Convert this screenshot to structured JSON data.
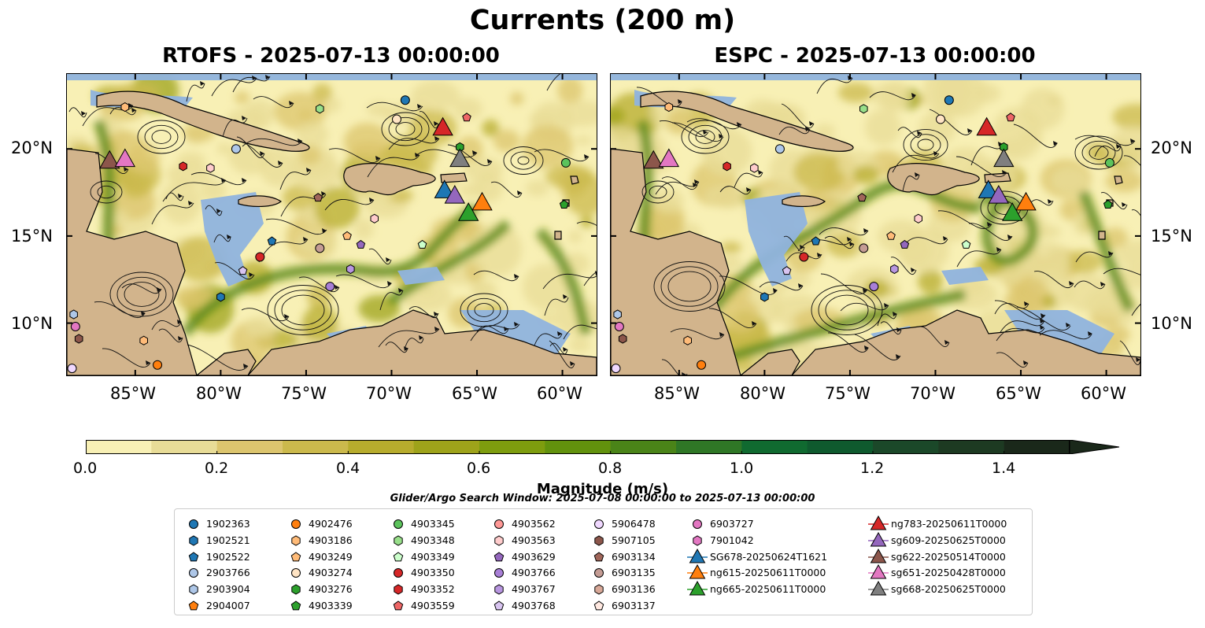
{
  "figure": {
    "title": "Currents (200 m)",
    "panels": [
      {
        "title": "RTOFS - 2025-07-13 00:00:00",
        "model": "RTOFS"
      },
      {
        "title": "ESPC - 2025-07-13 00:00:00",
        "model": "ESPC"
      }
    ],
    "lon_ticks": [
      "85°W",
      "80°W",
      "75°W",
      "70°W",
      "65°W",
      "60°W"
    ],
    "lat_ticks": [
      "20°N",
      "15°N",
      "10°N"
    ],
    "extent": {
      "lon": [
        -89,
        -58
      ],
      "lat": [
        7,
        24.3
      ]
    },
    "colors": {
      "land": "#d2b48c",
      "shallow_water": "#8fb3de",
      "coastline": "#000000"
    }
  },
  "colorbar": {
    "label": "Magnitude (m/s)",
    "min": 0.0,
    "max": 1.5,
    "extend": "max",
    "ticks": [
      "0.0",
      "0.2",
      "0.4",
      "0.6",
      "0.8",
      "1.0",
      "1.2",
      "1.4"
    ],
    "colors": [
      "#f8f0b5",
      "#e8dc97",
      "#dcc56e",
      "#cbb94c",
      "#b7ac2d",
      "#9ea31a",
      "#7e9d0e",
      "#62920d",
      "#4a8418",
      "#2f7726",
      "#106a30",
      "#0f5a2e",
      "#1b4829",
      "#1d3a22",
      "#1a281a"
    ]
  },
  "search_window": "Glider/Argo Search Window: 2025-07-08 00:00:00 to 2025-07-13 00:00:00",
  "legend": {
    "columns": [
      [
        {
          "label": "1902363",
          "marker": "circle",
          "color": "#1f77b4"
        },
        {
          "label": "1902521",
          "marker": "hexagon",
          "color": "#1f77b4"
        },
        {
          "label": "1902522",
          "marker": "pentagon",
          "color": "#1f77b4"
        },
        {
          "label": "2903766",
          "marker": "circle",
          "color": "#aec7e8"
        },
        {
          "label": "2903904",
          "marker": "hexagon",
          "color": "#aec7e8"
        },
        {
          "label": "2904007",
          "marker": "pentagon",
          "color": "#ff7f0e"
        }
      ],
      [
        {
          "label": "4902476",
          "marker": "circle",
          "color": "#ff7f0e"
        },
        {
          "label": "4903186",
          "marker": "hexagon",
          "color": "#ffbb78"
        },
        {
          "label": "4903249",
          "marker": "pentagon",
          "color": "#ffbb78"
        },
        {
          "label": "4903274",
          "marker": "circle",
          "color": "#ffe4c4"
        },
        {
          "label": "4903276",
          "marker": "hexagon",
          "color": "#2ca02c"
        },
        {
          "label": "4903339",
          "marker": "pentagon",
          "color": "#2ca02c"
        }
      ],
      [
        {
          "label": "4903345",
          "marker": "circle",
          "color": "#5cc35c"
        },
        {
          "label": "4903348",
          "marker": "hexagon",
          "color": "#98df8a"
        },
        {
          "label": "4903349",
          "marker": "pentagon",
          "color": "#ccffcc"
        },
        {
          "label": "4903350",
          "marker": "circle",
          "color": "#d62728"
        },
        {
          "label": "4903352",
          "marker": "hexagon",
          "color": "#d62728"
        },
        {
          "label": "4903559",
          "marker": "pentagon",
          "color": "#ee6666"
        }
      ],
      [
        {
          "label": "4903562",
          "marker": "circle",
          "color": "#ff9896"
        },
        {
          "label": "4903563",
          "marker": "hexagon",
          "color": "#ffcccc"
        },
        {
          "label": "4903629",
          "marker": "pentagon",
          "color": "#9467bd"
        },
        {
          "label": "4903766",
          "marker": "circle",
          "color": "#a87fd6"
        },
        {
          "label": "4903767",
          "marker": "hexagon",
          "color": "#b896e0"
        },
        {
          "label": "4903768",
          "marker": "pentagon",
          "color": "#d8c4f0"
        }
      ],
      [
        {
          "label": "5906478",
          "marker": "circle",
          "color": "#f0d8ff"
        },
        {
          "label": "5907105",
          "marker": "hexagon",
          "color": "#8c564b"
        },
        {
          "label": "6903134",
          "marker": "pentagon",
          "color": "#a0665a"
        },
        {
          "label": "6903135",
          "marker": "circle",
          "color": "#c49c94"
        },
        {
          "label": "6903136",
          "marker": "hexagon",
          "color": "#d8a898"
        },
        {
          "label": "6903137",
          "marker": "pentagon",
          "color": "#ffe8e0"
        }
      ],
      [
        {
          "label": "6903727",
          "marker": "circle",
          "color": "#e377c2"
        },
        {
          "label": "7901042",
          "marker": "hexagon",
          "color": "#e377c2"
        },
        {
          "label": "SG678-20250624T1621",
          "marker": "triangle",
          "color": "#1f77b4"
        },
        {
          "label": "ng615-20250611T0000",
          "marker": "triangle",
          "color": "#ff7f0e"
        },
        {
          "label": "ng665-20250611T0000",
          "marker": "triangle",
          "color": "#2ca02c"
        }
      ],
      [
        {
          "label": "ng783-20250611T0000",
          "marker": "triangle",
          "color": "#d62728"
        },
        {
          "label": "sg609-20250625T0000",
          "marker": "triangle",
          "color": "#9467bd"
        },
        {
          "label": "sg622-20250514T0000",
          "marker": "triangle",
          "color": "#8c564b"
        },
        {
          "label": "sg651-20250428T0000",
          "marker": "triangle",
          "color": "#e377c2"
        },
        {
          "label": "sg668-20250625T0000",
          "marker": "triangle",
          "color": "#7f7f7f"
        }
      ]
    ]
  },
  "observations": {
    "floats": [
      {
        "id": "1902363",
        "lon": -69.2,
        "lat": 22.8
      },
      {
        "id": "2903766",
        "lon": -79.1,
        "lat": 20.0
      },
      {
        "id": "4903274",
        "lon": -69.7,
        "lat": 21.7
      },
      {
        "id": "4903345",
        "lon": -59.8,
        "lat": 19.2
      },
      {
        "id": "4903350",
        "lon": -77.7,
        "lat": 13.8
      },
      {
        "id": "4903559",
        "lon": -65.6,
        "lat": 21.8
      },
      {
        "id": "4903339",
        "lon": -59.9,
        "lat": 16.8
      },
      {
        "id": "4903348",
        "lon": -74.2,
        "lat": 22.3
      },
      {
        "id": "4903276",
        "lon": -66.0,
        "lat": 20.1
      },
      {
        "id": "6903134",
        "lon": -74.3,
        "lat": 17.2
      },
      {
        "id": "4903563",
        "lon": -71.0,
        "lat": 16.0
      },
      {
        "id": "6903135",
        "lon": -74.2,
        "lat": 14.3
      },
      {
        "id": "4903629",
        "lon": -71.8,
        "lat": 14.5
      },
      {
        "id": "4903249",
        "lon": -72.6,
        "lat": 15.0
      },
      {
        "id": "4903349",
        "lon": -68.2,
        "lat": 14.5
      },
      {
        "id": "1902522",
        "lon": -77.0,
        "lat": 14.7
      },
      {
        "id": "4903768",
        "lon": -78.7,
        "lat": 13.0
      },
      {
        "id": "4903767",
        "lon": -72.4,
        "lat": 13.1
      },
      {
        "id": "4903766",
        "lon": -73.6,
        "lat": 12.1
      },
      {
        "id": "1902521",
        "lon": -80.0,
        "lat": 11.5
      },
      {
        "id": "4903352",
        "lon": -82.2,
        "lat": 19.0
      },
      {
        "id": "4903563b",
        "lon": -80.6,
        "lat": 18.9
      },
      {
        "id": "4903186",
        "lon": -85.6,
        "lat": 22.4
      },
      {
        "id": "2903904",
        "lon": -88.6,
        "lat": 10.5
      },
      {
        "id": "6903727",
        "lon": -88.5,
        "lat": 9.8
      },
      {
        "id": "5907105",
        "lon": -88.3,
        "lat": 9.1
      },
      {
        "id": "4903186b",
        "lon": -84.5,
        "lat": 9.0
      },
      {
        "id": "4902476",
        "lon": -83.7,
        "lat": 7.6
      },
      {
        "id": "5906478",
        "lon": -88.7,
        "lat": 7.4
      }
    ],
    "gliders": [
      {
        "id": "ng783",
        "lon": -67.0,
        "lat": 21.2,
        "color": "#d62728"
      },
      {
        "id": "sg668",
        "lon": -66.0,
        "lat": 19.4,
        "color": "#7f7f7f"
      },
      {
        "id": "SG678",
        "lon": -66.9,
        "lat": 17.6,
        "color": "#1f77b4"
      },
      {
        "id": "sg609",
        "lon": -66.3,
        "lat": 17.3,
        "color": "#9467bd"
      },
      {
        "id": "ng615",
        "lon": -64.7,
        "lat": 16.9,
        "color": "#ff7f0e"
      },
      {
        "id": "ng665",
        "lon": -65.5,
        "lat": 16.3,
        "color": "#2ca02c"
      },
      {
        "id": "sg622",
        "lon": -86.5,
        "lat": 19.3,
        "color": "#8c564b"
      },
      {
        "id": "sg651",
        "lon": -85.6,
        "lat": 19.4,
        "color": "#e377c2"
      }
    ]
  }
}
